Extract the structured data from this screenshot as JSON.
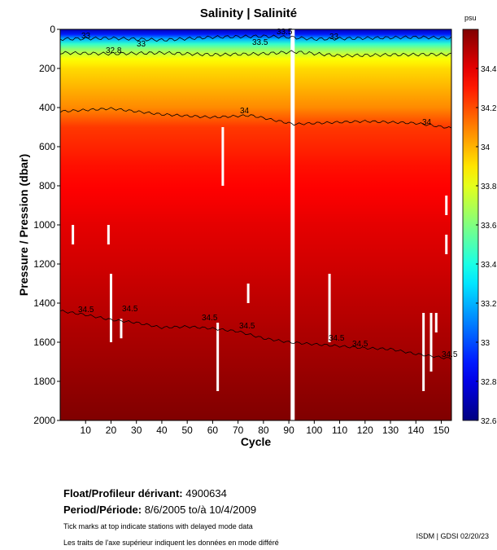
{
  "chart_data": {
    "type": "heatmap",
    "title": "Salinity | Salinité",
    "xlabel": "Cycle",
    "ylabel": "Pressure / Pression (dbar)",
    "xlim": [
      0,
      154
    ],
    "ylim": [
      2000,
      0
    ],
    "x_ticks": [
      "10",
      "20",
      "30",
      "40",
      "50",
      "60",
      "70",
      "80",
      "90",
      "100",
      "110",
      "120",
      "130",
      "140",
      "150"
    ],
    "y_ticks": [
      "0",
      "200",
      "400",
      "600",
      "800",
      "1000",
      "1200",
      "1400",
      "1600",
      "1800",
      "2000"
    ],
    "colorbar": {
      "unit": "psu",
      "range": [
        32.6,
        34.6
      ],
      "tick_labels": [
        "34.4",
        "34.2",
        "34",
        "33.8",
        "33.6",
        "33.4",
        "33.2",
        "33",
        "32.8",
        "32.6"
      ],
      "colormap": "jet"
    },
    "contours": [
      {
        "level": 33,
        "label": "33",
        "depth_profile": [
          [
            0,
            50
          ],
          [
            20,
            45
          ],
          [
            40,
            55
          ],
          [
            60,
            40
          ],
          [
            80,
            35
          ],
          [
            90,
            40
          ],
          [
            100,
            50
          ],
          [
            120,
            45
          ],
          [
            140,
            40
          ],
          [
            154,
            45
          ]
        ]
      },
      {
        "level": 32.8,
        "label": "32.8",
        "depth_profile": [
          [
            0,
            120
          ],
          [
            20,
            125
          ],
          [
            40,
            120
          ],
          [
            60,
            130
          ],
          [
            80,
            125
          ],
          [
            92,
            115
          ],
          [
            110,
            135
          ],
          [
            130,
            130
          ],
          [
            154,
            128
          ]
        ]
      },
      {
        "level": 34,
        "label": "34",
        "depth_profile": [
          [
            0,
            420
          ],
          [
            20,
            405
          ],
          [
            40,
            435
          ],
          [
            60,
            450
          ],
          [
            75,
            440
          ],
          [
            92,
            485
          ],
          [
            100,
            480
          ],
          [
            120,
            470
          ],
          [
            140,
            480
          ],
          [
            154,
            505
          ]
        ]
      },
      {
        "level": 34.5,
        "label": "34.5",
        "depth_profile": [
          [
            0,
            1440
          ],
          [
            10,
            1460
          ],
          [
            20,
            1485
          ],
          [
            30,
            1500
          ],
          [
            40,
            1525
          ],
          [
            50,
            1520
          ],
          [
            60,
            1530
          ],
          [
            70,
            1545
          ],
          [
            80,
            1580
          ],
          [
            90,
            1600
          ],
          [
            100,
            1610
          ],
          [
            110,
            1620
          ],
          [
            120,
            1630
          ],
          [
            130,
            1635
          ],
          [
            140,
            1660
          ],
          [
            154,
            1685
          ]
        ]
      }
    ],
    "contour_labels": [
      "33",
      "32.8",
      "33",
      "33.5",
      "33.5",
      "33",
      "34",
      "34",
      "34.5",
      "34.5",
      "34.5",
      "34.5",
      "34.5",
      "34.5",
      "34.5"
    ],
    "data_gaps": [
      {
        "cycle": 91.5,
        "p_from": 0,
        "p_to": 2000
      },
      {
        "cycle": 64,
        "p_from": 500,
        "p_to": 800
      },
      {
        "cycle": 5,
        "p_from": 1000,
        "p_to": 1100
      },
      {
        "cycle": 19,
        "p_from": 1000,
        "p_to": 1100
      },
      {
        "cycle": 20,
        "p_from": 1250,
        "p_to": 1600
      },
      {
        "cycle": 24,
        "p_from": 1480,
        "p_to": 1580
      },
      {
        "cycle": 62,
        "p_from": 1500,
        "p_to": 1850
      },
      {
        "cycle": 74,
        "p_from": 1300,
        "p_to": 1400
      },
      {
        "cycle": 106,
        "p_from": 1250,
        "p_to": 1600
      },
      {
        "cycle": 143,
        "p_from": 1450,
        "p_to": 1850
      },
      {
        "cycle": 146,
        "p_from": 1450,
        "p_to": 1750
      },
      {
        "cycle": 148,
        "p_from": 1450,
        "p_to": 1550
      },
      {
        "cycle": 152,
        "p_from": 850,
        "p_to": 950
      },
      {
        "cycle": 152,
        "p_from": 1050,
        "p_to": 1150
      }
    ]
  },
  "footer": {
    "float_label": "Float/Profileur dérivant:",
    "float_id": "4900634",
    "period_label": "Period/Période:",
    "period_value": "8/6/2005  to/à  10/4/2009",
    "note_en": "Tick marks at top indicate stations with delayed mode data",
    "note_fr": "Les traits de l'axe supérieur indiquent les données en mode différé",
    "credit": "ISDM | GDSI  02/20/23"
  }
}
